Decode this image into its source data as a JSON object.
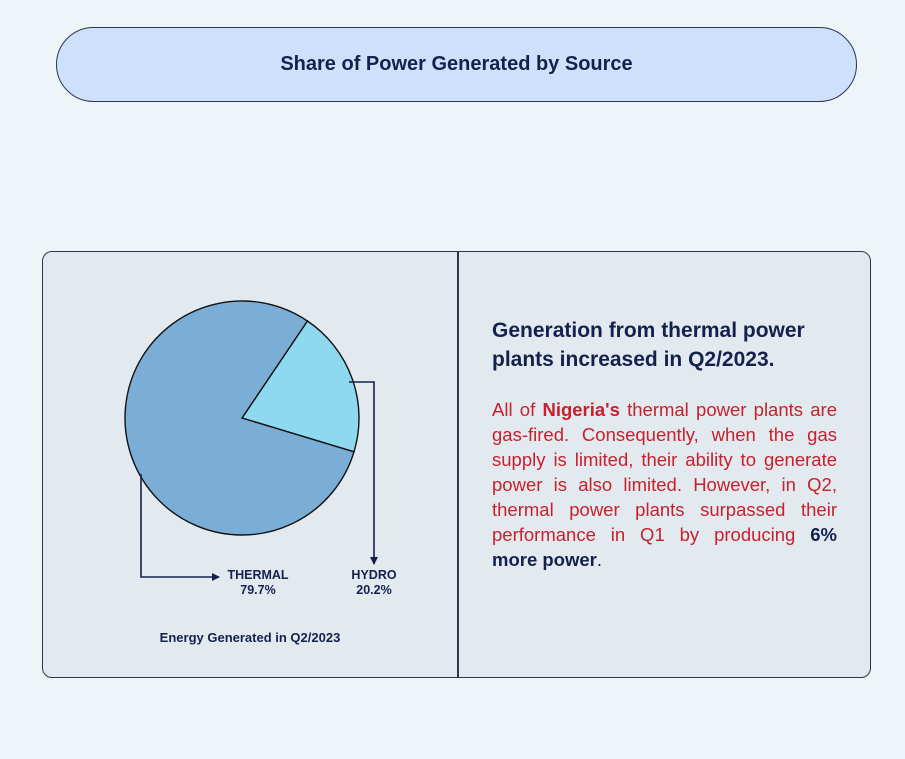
{
  "title": "Share of Power Generated by Source",
  "chart_data": {
    "type": "pie",
    "caption": "Energy Generated in Q2/2023",
    "slices": [
      {
        "label": "THERMAL",
        "value": 79.7,
        "value_label": "79.7%",
        "color": "#7aaed6"
      },
      {
        "label": "HYDRO",
        "value": 20.2,
        "value_label": "20.2%",
        "color": "#8fd9f0"
      }
    ]
  },
  "commentary": {
    "headline": "Generation from thermal power plants increased in Q2/2023.",
    "body_1": "All of ",
    "body_bold_1": "Nigeria's",
    "body_2": " thermal power plants are gas-fired. Consequently, when the gas supply is limited, their ability to generate power is also limited. However, in Q2, thermal power plants surpassed their performance in Q1 by producing ",
    "body_bold_2": "6% more power",
    "body_3": "."
  },
  "colors": {
    "background": "#eef5f9",
    "title_pill": "#cfe0fb",
    "card": "#e3eaef",
    "navy": "#14214f",
    "red": "#c8202c"
  }
}
